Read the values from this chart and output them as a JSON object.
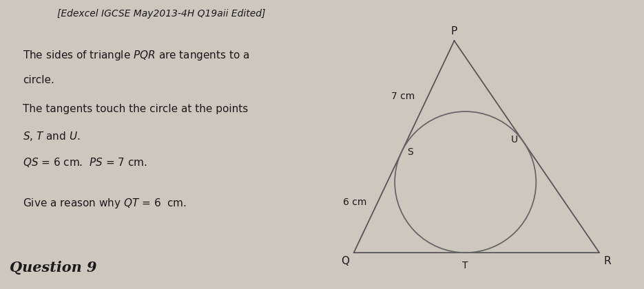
{
  "bg_color": "#cdc8be",
  "title": "[Edexcel IGCSE May2013-4H Q19aii Edited]",
  "line_texts": [
    "The sides of triangle $PQR$ are tangents to a",
    "circle.",
    "The tangents touch the circle at the points",
    "$S$, $T$ and $U$.",
    "$QS$ = 6 cm.  $PS$ = 7 cm."
  ],
  "question_line": "Give a reason why $QT$ = 6  cm.",
  "footer": "Question 9",
  "label_P": "P",
  "label_Q": "Q",
  "label_R": "R",
  "label_S": "S",
  "label_T": "T",
  "label_U": "U",
  "label_7cm": "7 cm",
  "label_6cm": "6 cm",
  "line_color": "#555555",
  "circle_color": "#666666",
  "text_color": "#1a1a1a"
}
